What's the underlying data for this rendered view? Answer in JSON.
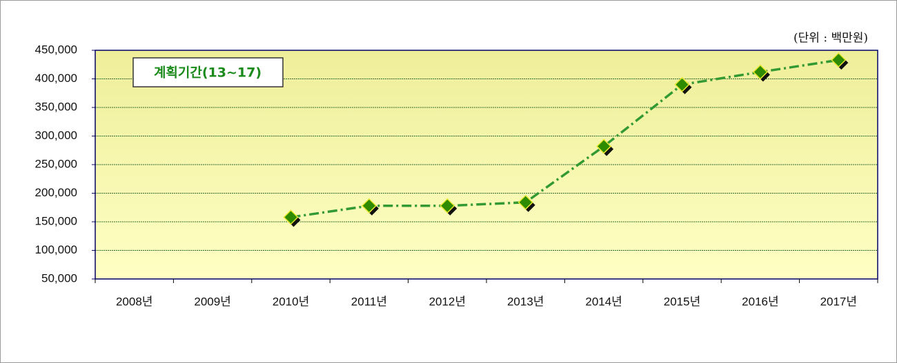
{
  "chart_data": {
    "type": "line",
    "unit_note": "(단위 : 백만원)",
    "annotation": "계획기간(13~17)",
    "categories": [
      "2008년",
      "2009년",
      "2010년",
      "2011년",
      "2012년",
      "2013년",
      "2014년",
      "2015년",
      "2016년",
      "2017년"
    ],
    "values": [
      null,
      null,
      158000,
      178000,
      178000,
      184000,
      282000,
      390000,
      412000,
      433000
    ],
    "color": "#339933",
    "marker_color": "#2e8b00",
    "ylim": [
      50000,
      450000
    ],
    "yticks": [
      {
        "value": 50000,
        "label": "50,000"
      },
      {
        "value": 100000,
        "label": "100,000"
      },
      {
        "value": 150000,
        "label": "150,000"
      },
      {
        "value": 200000,
        "label": "200,000"
      },
      {
        "value": 250000,
        "label": "250,000"
      },
      {
        "value": 300000,
        "label": "300,000"
      },
      {
        "value": 350000,
        "label": "350,000"
      },
      {
        "value": 400000,
        "label": "400,000"
      },
      {
        "value": 450000,
        "label": "450,000"
      }
    ],
    "grid": true
  }
}
